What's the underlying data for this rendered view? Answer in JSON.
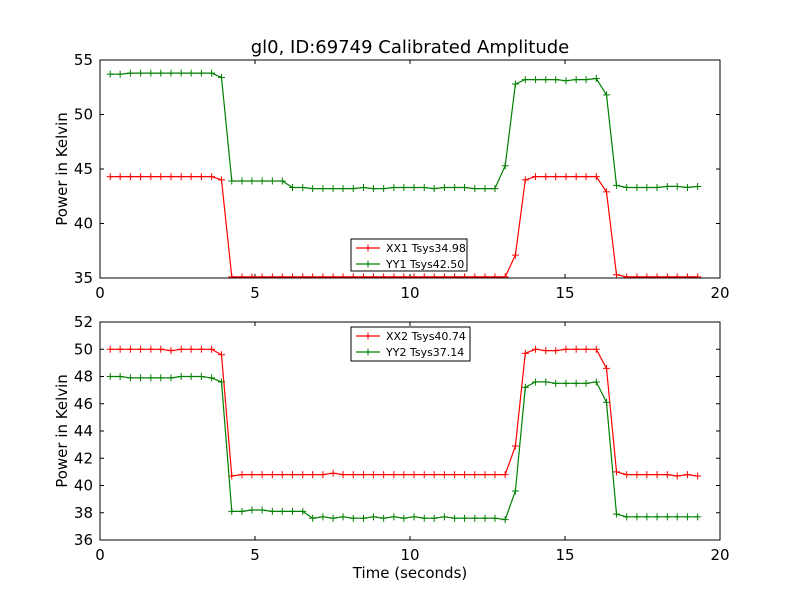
{
  "figure": {
    "title": "gl0, ID:69749 Calibrated Amplitude"
  },
  "chart_data": [
    {
      "type": "line",
      "title": "gl0, ID:69749 Calibrated Amplitude",
      "xlabel": "",
      "ylabel": "Power in Kelvin",
      "xlim": [
        0,
        20
      ],
      "ylim": [
        35,
        55
      ],
      "xticks": [
        0,
        5,
        10,
        15,
        20
      ],
      "yticks": [
        35,
        40,
        45,
        50,
        55
      ],
      "grid": false,
      "legend_position": "lower-center",
      "x": [
        0.33,
        0.65,
        0.98,
        1.31,
        1.64,
        1.96,
        2.29,
        2.62,
        2.94,
        3.27,
        3.6,
        3.92,
        4.25,
        4.58,
        4.9,
        5.23,
        5.56,
        5.88,
        6.21,
        6.54,
        6.86,
        7.19,
        7.52,
        7.84,
        8.17,
        8.5,
        8.82,
        9.15,
        9.48,
        9.8,
        10.13,
        10.46,
        10.78,
        11.11,
        11.44,
        11.76,
        12.09,
        12.42,
        12.74,
        13.07,
        13.4,
        13.72,
        14.05,
        14.38,
        14.7,
        15.03,
        15.36,
        15.68,
        16.01,
        16.34,
        16.66,
        16.99,
        17.32,
        17.64,
        17.97,
        18.3,
        18.62,
        18.95,
        19.28
      ],
      "series": [
        {
          "name": "XX1 Tsys34.98",
          "color": "#ff0000",
          "values": [
            44.3,
            44.3,
            44.3,
            44.3,
            44.3,
            44.3,
            44.3,
            44.3,
            44.3,
            44.3,
            44.3,
            44.0,
            35.1,
            35.1,
            35.1,
            35.1,
            35.1,
            35.1,
            35.1,
            35.1,
            35.1,
            35.1,
            35.1,
            35.1,
            35.1,
            35.1,
            35.1,
            35.1,
            35.1,
            35.1,
            35.1,
            35.1,
            35.1,
            35.1,
            35.1,
            35.1,
            35.1,
            35.1,
            35.1,
            35.1,
            37.1,
            44.0,
            44.3,
            44.3,
            44.3,
            44.3,
            44.3,
            44.3,
            44.3,
            42.9,
            35.3,
            35.1,
            35.1,
            35.1,
            35.1,
            35.1,
            35.1,
            35.1,
            35.1
          ]
        },
        {
          "name": "YY1 Tsys42.50",
          "color": "#008000",
          "values": [
            53.7,
            53.7,
            53.8,
            53.8,
            53.8,
            53.8,
            53.8,
            53.8,
            53.8,
            53.8,
            53.8,
            53.4,
            43.9,
            43.9,
            43.9,
            43.9,
            43.9,
            43.9,
            43.3,
            43.3,
            43.2,
            43.2,
            43.2,
            43.2,
            43.2,
            43.3,
            43.2,
            43.2,
            43.3,
            43.3,
            43.3,
            43.3,
            43.2,
            43.3,
            43.3,
            43.3,
            43.2,
            43.2,
            43.2,
            45.3,
            52.8,
            53.2,
            53.2,
            53.2,
            53.2,
            53.1,
            53.2,
            53.2,
            53.3,
            51.8,
            43.5,
            43.3,
            43.3,
            43.3,
            43.3,
            43.4,
            43.4,
            43.3,
            43.4
          ]
        }
      ]
    },
    {
      "type": "line",
      "title": "",
      "xlabel": "Time (seconds)",
      "ylabel": "Power in Kelvin",
      "xlim": [
        0,
        20
      ],
      "ylim": [
        36,
        52
      ],
      "xticks": [
        0,
        5,
        10,
        15,
        20
      ],
      "yticks": [
        36,
        38,
        40,
        42,
        44,
        46,
        48,
        50,
        52
      ],
      "grid": false,
      "legend_position": "upper-center",
      "x": [
        0.33,
        0.65,
        0.98,
        1.31,
        1.64,
        1.96,
        2.29,
        2.62,
        2.94,
        3.27,
        3.6,
        3.92,
        4.25,
        4.58,
        4.9,
        5.23,
        5.56,
        5.88,
        6.21,
        6.54,
        6.86,
        7.19,
        7.52,
        7.84,
        8.17,
        8.5,
        8.82,
        9.15,
        9.48,
        9.8,
        10.13,
        10.46,
        10.78,
        11.11,
        11.44,
        11.76,
        12.09,
        12.42,
        12.74,
        13.07,
        13.4,
        13.72,
        14.05,
        14.38,
        14.7,
        15.03,
        15.36,
        15.68,
        16.01,
        16.34,
        16.66,
        16.99,
        17.32,
        17.64,
        17.97,
        18.3,
        18.62,
        18.95,
        19.28
      ],
      "series": [
        {
          "name": "XX2 Tsys40.74",
          "color": "#ff0000",
          "values": [
            50.0,
            50.0,
            50.0,
            50.0,
            50.0,
            50.0,
            49.9,
            50.0,
            50.0,
            50.0,
            50.0,
            49.6,
            40.7,
            40.8,
            40.8,
            40.8,
            40.8,
            40.8,
            40.8,
            40.8,
            40.8,
            40.8,
            40.9,
            40.8,
            40.8,
            40.8,
            40.8,
            40.8,
            40.8,
            40.8,
            40.8,
            40.8,
            40.8,
            40.8,
            40.8,
            40.8,
            40.8,
            40.8,
            40.8,
            40.8,
            42.9,
            49.7,
            50.0,
            49.9,
            49.9,
            50.0,
            50.0,
            50.0,
            50.0,
            48.6,
            41.0,
            40.8,
            40.8,
            40.8,
            40.8,
            40.8,
            40.7,
            40.8,
            40.7
          ]
        },
        {
          "name": "YY2 Tsys37.14",
          "color": "#008000",
          "values": [
            48.0,
            48.0,
            47.9,
            47.9,
            47.9,
            47.9,
            47.9,
            48.0,
            48.0,
            48.0,
            47.9,
            47.6,
            38.1,
            38.1,
            38.2,
            38.2,
            38.1,
            38.1,
            38.1,
            38.1,
            37.6,
            37.7,
            37.6,
            37.7,
            37.6,
            37.6,
            37.7,
            37.6,
            37.7,
            37.6,
            37.7,
            37.6,
            37.6,
            37.7,
            37.6,
            37.6,
            37.6,
            37.6,
            37.6,
            37.5,
            39.6,
            47.2,
            47.6,
            47.6,
            47.5,
            47.5,
            47.5,
            47.5,
            47.6,
            46.1,
            37.9,
            37.7,
            37.7,
            37.7,
            37.7,
            37.7,
            37.7,
            37.7,
            37.7
          ]
        }
      ]
    }
  ]
}
